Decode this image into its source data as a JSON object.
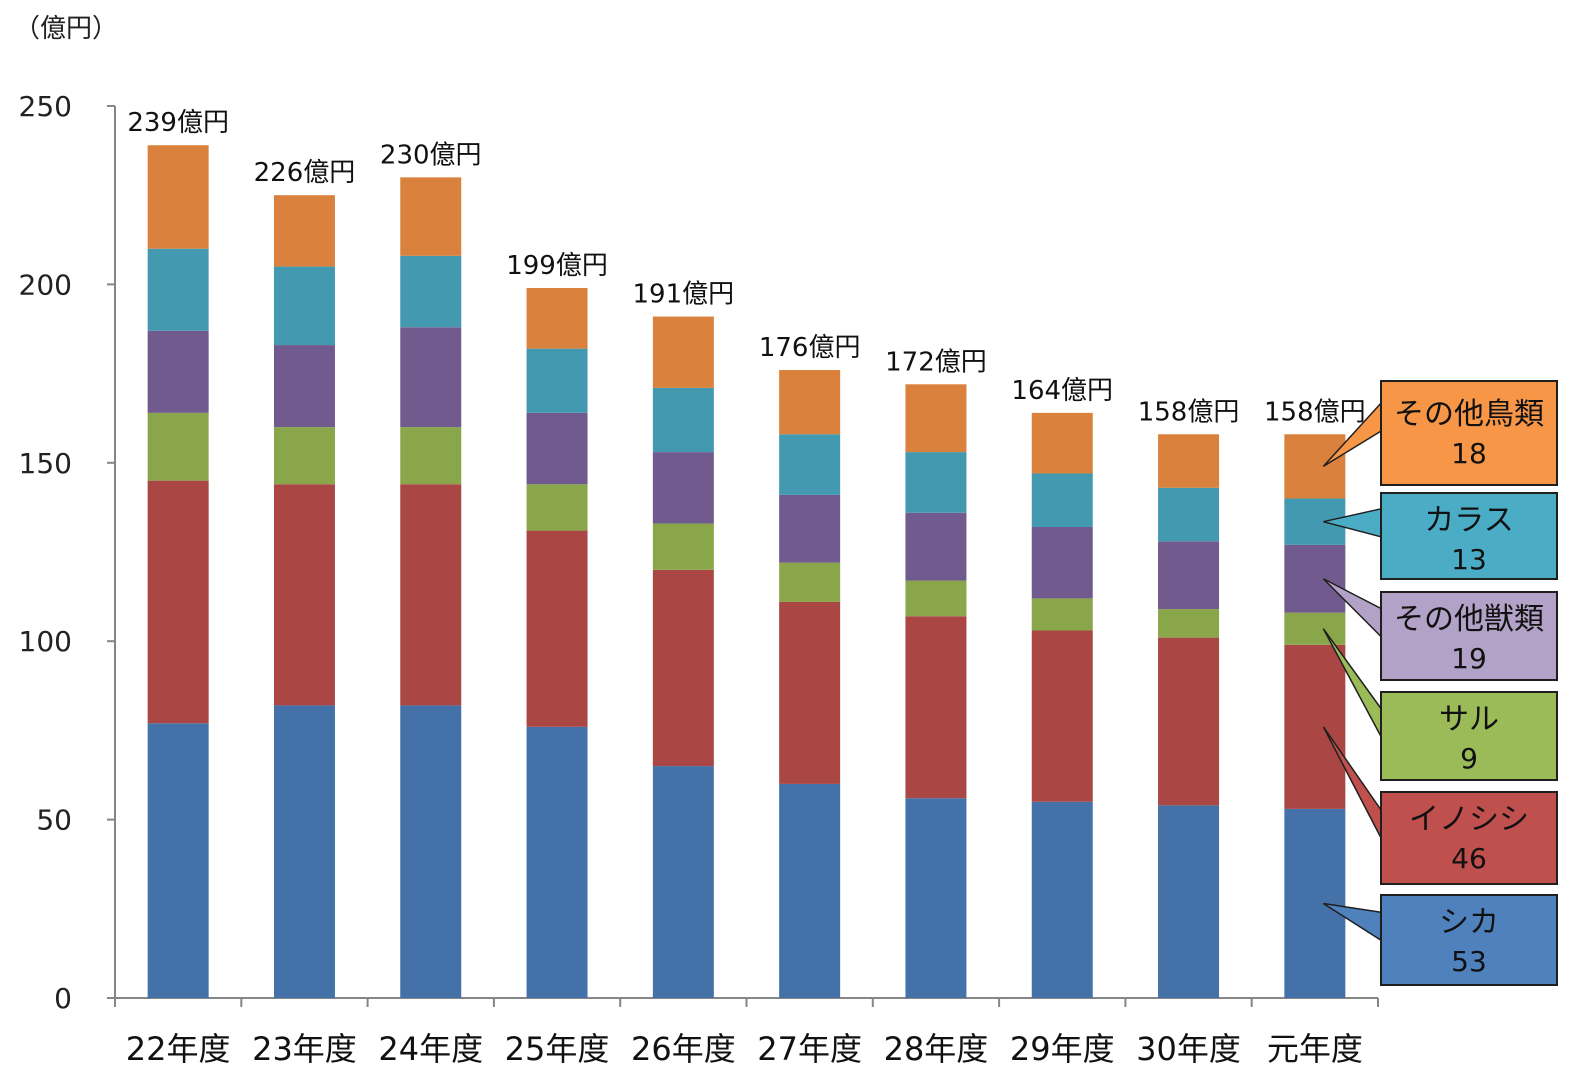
{
  "chart_data": {
    "type": "bar",
    "stacked": true,
    "unit_label": "（億円）",
    "categories": [
      "22年度",
      "23年度",
      "24年度",
      "25年度",
      "26年度",
      "27年度",
      "28年度",
      "29年度",
      "30年度",
      "元年度"
    ],
    "totals": [
      "239億円",
      "226億円",
      "230億円",
      "199億円",
      "191億円",
      "176億円",
      "172億円",
      "164億円",
      "158億円",
      "158億円"
    ],
    "ylim": [
      0,
      250
    ],
    "yticks": [
      0,
      50,
      100,
      150,
      200,
      250
    ],
    "series": [
      {
        "name": "シカ",
        "color": "#4472a8",
        "values": [
          77,
          82,
          82,
          76,
          65,
          60,
          56,
          55,
          54,
          53
        ]
      },
      {
        "name": "イノシシ",
        "color": "#aa4744",
        "values": [
          68,
          62,
          62,
          55,
          55,
          51,
          51,
          48,
          47,
          46
        ]
      },
      {
        "name": "サル",
        "color": "#8aa64b",
        "values": [
          19,
          16,
          16,
          13,
          13,
          11,
          10,
          9,
          8,
          9
        ]
      },
      {
        "name": "その他獣類",
        "color": "#715a8e",
        "values": [
          23,
          23,
          28,
          20,
          20,
          19,
          19,
          20,
          19,
          19
        ]
      },
      {
        "name": "カラス",
        "color": "#4299b0",
        "values": [
          23,
          22,
          20,
          18,
          18,
          17,
          17,
          15,
          15,
          13
        ]
      },
      {
        "name": "その他鳥類",
        "color": "#da823d",
        "values": [
          29,
          20,
          22,
          17,
          20,
          18,
          19,
          17,
          15,
          18
        ]
      }
    ],
    "callouts": [
      {
        "name": "その他鳥類",
        "value": "18",
        "fill": "#f79646"
      },
      {
        "name": "カラス",
        "value": "13",
        "fill": "#4bacc6"
      },
      {
        "name": "その他獣類",
        "value": "19",
        "fill": "#b3a2c7"
      },
      {
        "name": "サル",
        "value": "9",
        "fill": "#9bbb59"
      },
      {
        "name": "イノシシ",
        "value": "46",
        "fill": "#c0504d"
      },
      {
        "name": "シカ",
        "value": "53",
        "fill": "#4f81bd"
      }
    ]
  }
}
